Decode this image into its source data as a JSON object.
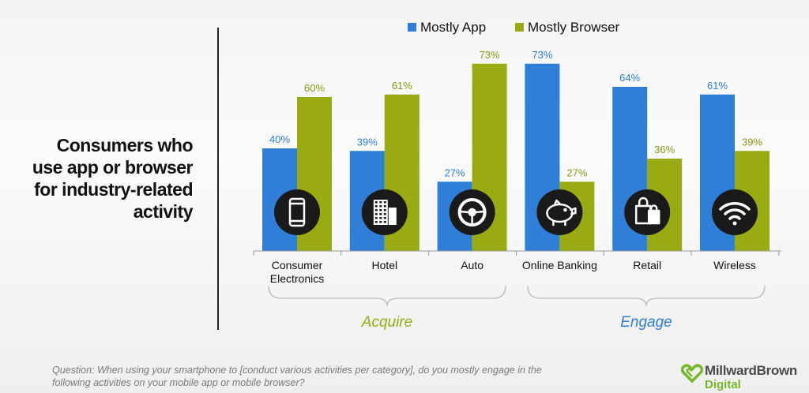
{
  "side_title_lines": [
    "Consumers who",
    "use app or browser",
    "for industry-related",
    "activity"
  ],
  "footer": {
    "line1": "Question: When using your smartphone to [conduct various activities per category], do you mostly engage in the",
    "line2": "following activities on your mobile app or mobile browser?"
  },
  "logo": {
    "name": "MillwardBrown",
    "sub": "Digital"
  },
  "chart_data": {
    "type": "bar",
    "categories": [
      "Consumer\nElectronics",
      "Hotel",
      "Auto",
      "Online Banking",
      "Retail",
      "Wireless"
    ],
    "category_icons": [
      "smartphone-icon",
      "building-icon",
      "steering-wheel-icon",
      "piggy-bank-icon",
      "shopping-bag-icon",
      "wifi-icon"
    ],
    "series": [
      {
        "name": "Mostly App",
        "values": [
          40,
          39,
          27,
          73,
          64,
          61
        ],
        "color": "#2f7ed8"
      },
      {
        "name": "Mostly Browser",
        "values": [
          60,
          61,
          73,
          27,
          36,
          39
        ],
        "color": "#9aab12"
      }
    ],
    "data_labels": [
      [
        "40%",
        "39%",
        "27%",
        "73%",
        "64%",
        "61%"
      ],
      [
        "60%",
        "61%",
        "73%",
        "27%",
        "36%",
        "39%"
      ]
    ],
    "groups": [
      {
        "label": "Acquire",
        "categories": [
          0,
          1,
          2
        ],
        "color": "#9aab12"
      },
      {
        "label": "Engage",
        "categories": [
          3,
          4,
          5
        ],
        "color": "#2f7ed8"
      }
    ],
    "legend_position": "top",
    "ylim": [
      0,
      80
    ],
    "grid": false,
    "colors": {
      "app_label": "#2f7ed8",
      "browser_label": "#8a9a10",
      "icon_bg": "#1a1a1a"
    }
  }
}
